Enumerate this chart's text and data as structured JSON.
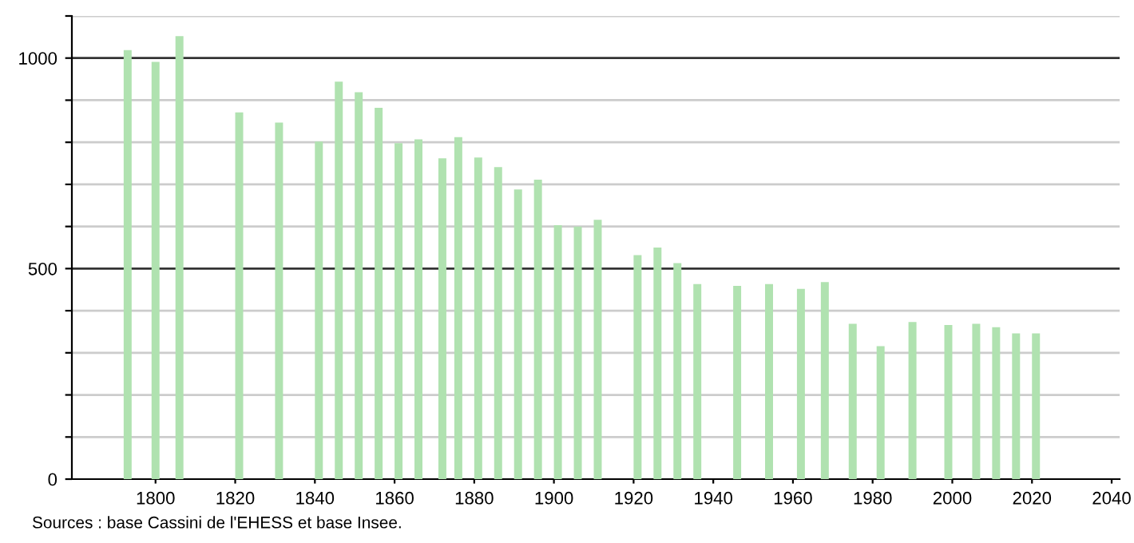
{
  "chart_data": {
    "type": "bar",
    "x": [
      1793,
      1800,
      1806,
      1821,
      1831,
      1841,
      1846,
      1851,
      1856,
      1861,
      1866,
      1872,
      1876,
      1881,
      1886,
      1891,
      1896,
      1901,
      1906,
      1911,
      1921,
      1926,
      1931,
      1936,
      1946,
      1954,
      1962,
      1968,
      1975,
      1982,
      1990,
      1999,
      2006,
      2011,
      2016,
      2021
    ],
    "values": [
      1019,
      991,
      1052,
      871,
      847,
      802,
      944,
      919,
      882,
      798,
      807,
      762,
      812,
      764,
      741,
      688,
      711,
      603,
      600,
      616,
      532,
      550,
      513,
      463,
      459,
      463,
      452,
      468,
      369,
      316,
      373,
      366,
      369,
      361,
      346,
      346
    ],
    "color": "#b0e2b0",
    "xlim": [
      1779,
      2042
    ],
    "xticks": [
      1800,
      1820,
      1840,
      1860,
      1880,
      1900,
      1920,
      1940,
      1960,
      1980,
      2000,
      2020,
      2040
    ],
    "ylim": [
      0,
      1100
    ],
    "yticks": [
      0,
      {
        "value": 100,
        "label": null
      },
      {
        "value": 200,
        "label": null
      },
      {
        "value": 300,
        "label": null
      },
      {
        "value": 400,
        "label": null
      },
      500,
      {
        "value": 600,
        "label": null
      },
      {
        "value": 700,
        "label": null
      },
      {
        "value": 800,
        "label": null
      },
      {
        "value": 900,
        "label": null
      },
      1000,
      {
        "value": 1100,
        "label": null
      }
    ],
    "grid": "y",
    "annotations": [
      "Sources : base Cassini de l'EHESS et base Insee."
    ]
  }
}
